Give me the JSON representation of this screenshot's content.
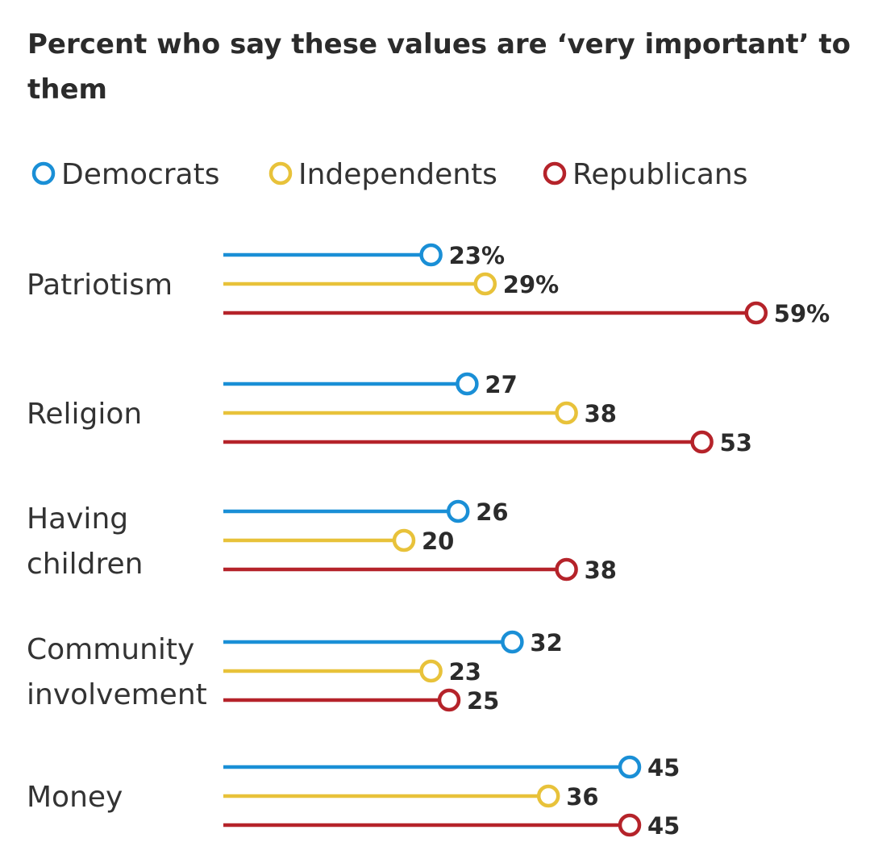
{
  "chart_data": {
    "type": "dot-line",
    "title": "Percent who say these values are ‘very important’ to them",
    "xlabel": "",
    "ylabel": "",
    "xlim": [
      0,
      59
    ],
    "legend_position": "top-left",
    "grid": false,
    "series": [
      {
        "name": "Democrats",
        "color": "#1a8fd6"
      },
      {
        "name": "Independents",
        "color": "#e8c23a"
      },
      {
        "name": "Republicans",
        "color": "#b5232a"
      }
    ],
    "categories": [
      {
        "label": "Patriotism",
        "lines": [
          "Patriotism"
        ],
        "values": [
          23,
          29,
          59
        ],
        "value_labels": [
          "23%",
          "29%",
          "59%"
        ]
      },
      {
        "label": "Religion",
        "lines": [
          "Religion"
        ],
        "values": [
          27,
          38,
          53
        ],
        "value_labels": [
          "27",
          "38",
          "53"
        ]
      },
      {
        "label": "Having children",
        "lines": [
          "Having",
          "children"
        ],
        "values": [
          26,
          20,
          38
        ],
        "value_labels": [
          "26",
          "20",
          "38"
        ]
      },
      {
        "label": "Community involvement",
        "lines": [
          "Community",
          "involvement"
        ],
        "values": [
          32,
          23,
          25
        ],
        "value_labels": [
          "32",
          "23",
          "25"
        ]
      },
      {
        "label": "Money",
        "lines": [
          "Money"
        ],
        "values": [
          45,
          36,
          45
        ],
        "value_labels": [
          "45",
          "36",
          "45"
        ]
      }
    ]
  }
}
